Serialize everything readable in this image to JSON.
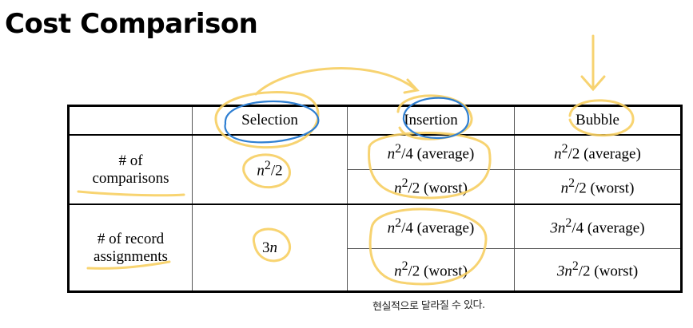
{
  "title": "Cost Comparison",
  "table": {
    "headers": [
      "",
      "Selection",
      "Insertion",
      "Bubble"
    ],
    "comparisons": {
      "label": [
        "# of",
        "comparisons"
      ],
      "selection": "n²/2",
      "insertion_average": "n²/4 (average)",
      "insertion_worst": "n²/2 (worst)",
      "bubble_average": "n²/2 (average)",
      "bubble_worst": "n²/2 (worst)"
    },
    "assignments": {
      "label": [
        "# of record",
        "assignments"
      ],
      "selection": "3n",
      "insertion_average": "n²/4 (average)",
      "insertion_worst": "n²/2 (worst)",
      "bubble_average": "3n²/4 (average)",
      "bubble_worst": "3n²/2 (worst)"
    }
  },
  "handwritten_note": "현실적으로 달라질 수 있다.",
  "colors": {
    "highlight_yellow": "#f7cf62",
    "ink_blue": "#2f7fd2"
  }
}
